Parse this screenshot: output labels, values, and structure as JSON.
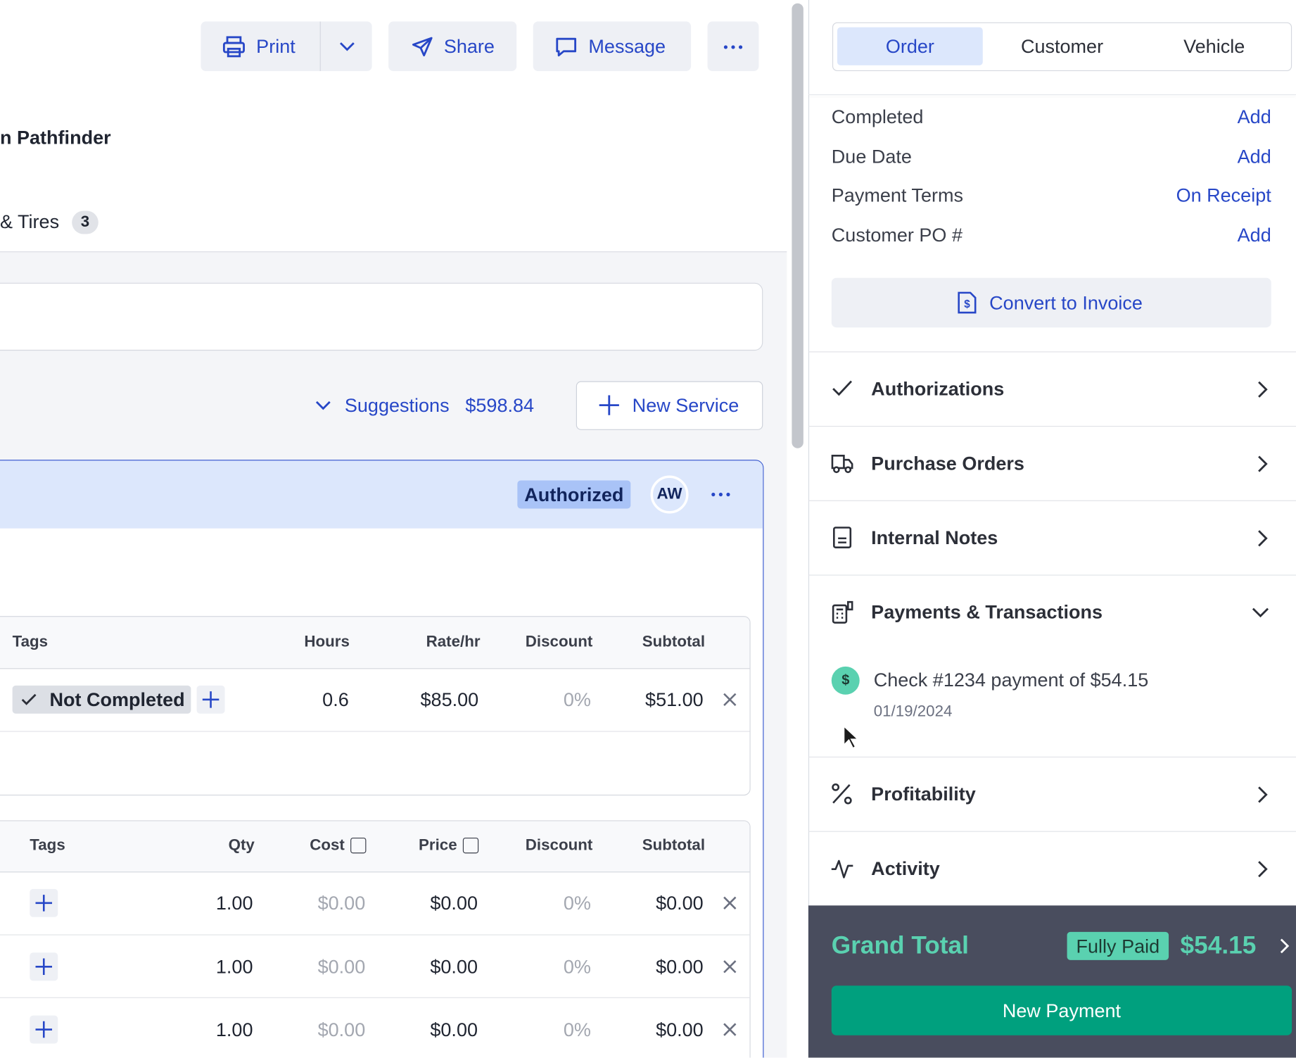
{
  "toolbar": {
    "print": "Print",
    "share": "Share",
    "message": "Message"
  },
  "vehicle_title": "n Pathfinder",
  "tab": {
    "label": "& Tires",
    "count": "3"
  },
  "suggestions": {
    "label": "Suggestions",
    "amount": "$598.84"
  },
  "new_service": "New Service",
  "service": {
    "status": "Authorized",
    "initials": "AW"
  },
  "labor_table": {
    "headers": [
      "Tags",
      "Hours",
      "Rate/hr",
      "Discount",
      "Subtotal"
    ],
    "rows": [
      [
        "Not Completed",
        "0.6",
        "$85.00",
        "0%",
        "$51.00"
      ]
    ]
  },
  "parts_table": {
    "headers": [
      "Tags",
      "Qty",
      "Cost",
      "Price",
      "Discount",
      "Subtotal"
    ],
    "rows": [
      [
        "1.00",
        "$0.00",
        "$0.00",
        "0%",
        "$0.00"
      ],
      [
        "1.00",
        "$0.00",
        "$0.00",
        "0%",
        "$0.00"
      ],
      [
        "1.00",
        "$0.00",
        "$0.00",
        "0%",
        "$0.00"
      ]
    ]
  },
  "sidebar": {
    "tabs": [
      "Order",
      "Customer",
      "Vehicle"
    ],
    "fields": [
      {
        "label": "Completed",
        "value": "Add"
      },
      {
        "label": "Due Date",
        "value": "Add"
      },
      {
        "label": "Payment Terms",
        "value": "On Receipt"
      },
      {
        "label": "Customer PO #",
        "value": "Add"
      }
    ],
    "convert": "Convert to Invoice",
    "sections": [
      "Authorizations",
      "Purchase Orders",
      "Internal Notes",
      "Payments & Transactions",
      "Profitability",
      "Activity"
    ],
    "payment": {
      "icon": "$",
      "text": "Check #1234 payment of $54.15",
      "date": "01/19/2024"
    },
    "grand_total": {
      "label": "Grand Total",
      "status": "Fully Paid",
      "amount": "$54.15"
    },
    "new_payment": "New Payment"
  }
}
